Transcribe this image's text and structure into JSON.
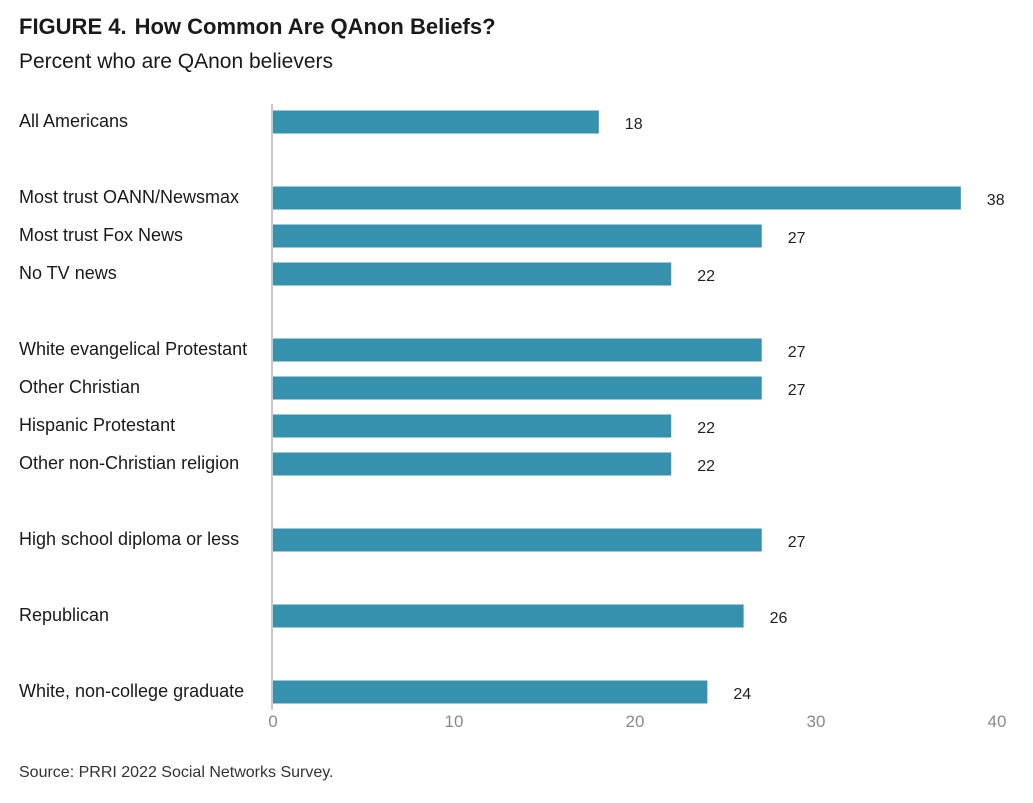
{
  "figure": {
    "label": "FIGURE 4.",
    "title": "How Common Are QAnon Beliefs?",
    "subtitle": "Percent who are QAnon believers",
    "source": "Source: PRRI 2022 Social Networks Survey."
  },
  "chart_data": {
    "type": "bar",
    "orientation": "horizontal",
    "categories": [
      "All Americans",
      "Most trust OANN/Newsmax",
      "Most trust Fox News",
      "No TV news",
      "White evangelical Protestant",
      "Other Christian",
      "Hispanic Protestant",
      "Other non-Christian religion",
      "High school diploma or less",
      "Republican",
      "White, non-college graduate"
    ],
    "values": [
      18,
      38,
      27,
      22,
      27,
      27,
      22,
      22,
      27,
      26,
      24
    ],
    "groups": [
      1,
      3,
      4,
      1,
      1,
      1
    ],
    "xlim": [
      0,
      40
    ],
    "xticks": [
      0,
      10,
      20,
      30,
      40
    ],
    "grid": false,
    "bar_color": "#3591ad",
    "axis_color": "#c8c8c8"
  }
}
